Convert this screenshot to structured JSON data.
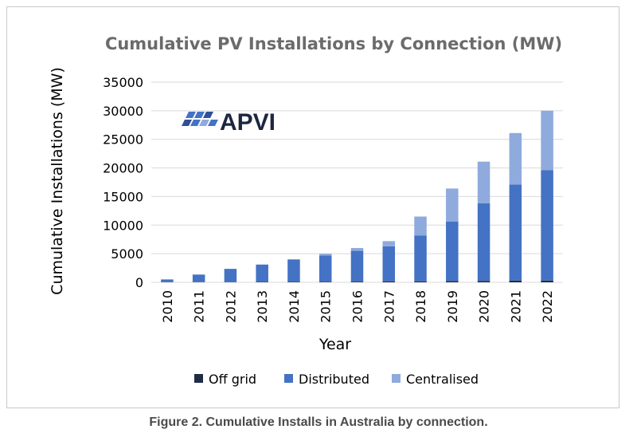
{
  "chart_data": {
    "type": "bar",
    "stacked": true,
    "title": "Cumulative PV Installations by Connection (MW)",
    "xlabel": "Year",
    "ylabel": "Cumulative Installations (MW)",
    "ylim": [
      0,
      35000
    ],
    "yticks": [
      0,
      5000,
      10000,
      15000,
      20000,
      25000,
      30000,
      35000
    ],
    "grid": true,
    "legend_position": "bottom",
    "categories": [
      "2010",
      "2011",
      "2012",
      "2013",
      "2014",
      "2015",
      "2016",
      "2017",
      "2018",
      "2019",
      "2020",
      "2021",
      "2022"
    ],
    "series": [
      {
        "name": "Off grid",
        "color": "#1f2c45",
        "values": [
          20,
          30,
          40,
          60,
          80,
          100,
          120,
          150,
          180,
          200,
          250,
          300,
          300
        ]
      },
      {
        "name": "Distributed",
        "color": "#4472c4",
        "values": [
          480,
          1320,
          2310,
          3040,
          3920,
          4600,
          5380,
          6150,
          8020,
          10400,
          13550,
          16800,
          19300
        ]
      },
      {
        "name": "Centralised",
        "color": "#8faadc",
        "values": [
          0,
          0,
          0,
          0,
          0,
          300,
          500,
          900,
          3300,
          5800,
          7300,
          9000,
          10400
        ]
      }
    ]
  },
  "logo": {
    "text": "APVI"
  },
  "caption": "Figure 2. Cumulative Installs in Australia by connection."
}
